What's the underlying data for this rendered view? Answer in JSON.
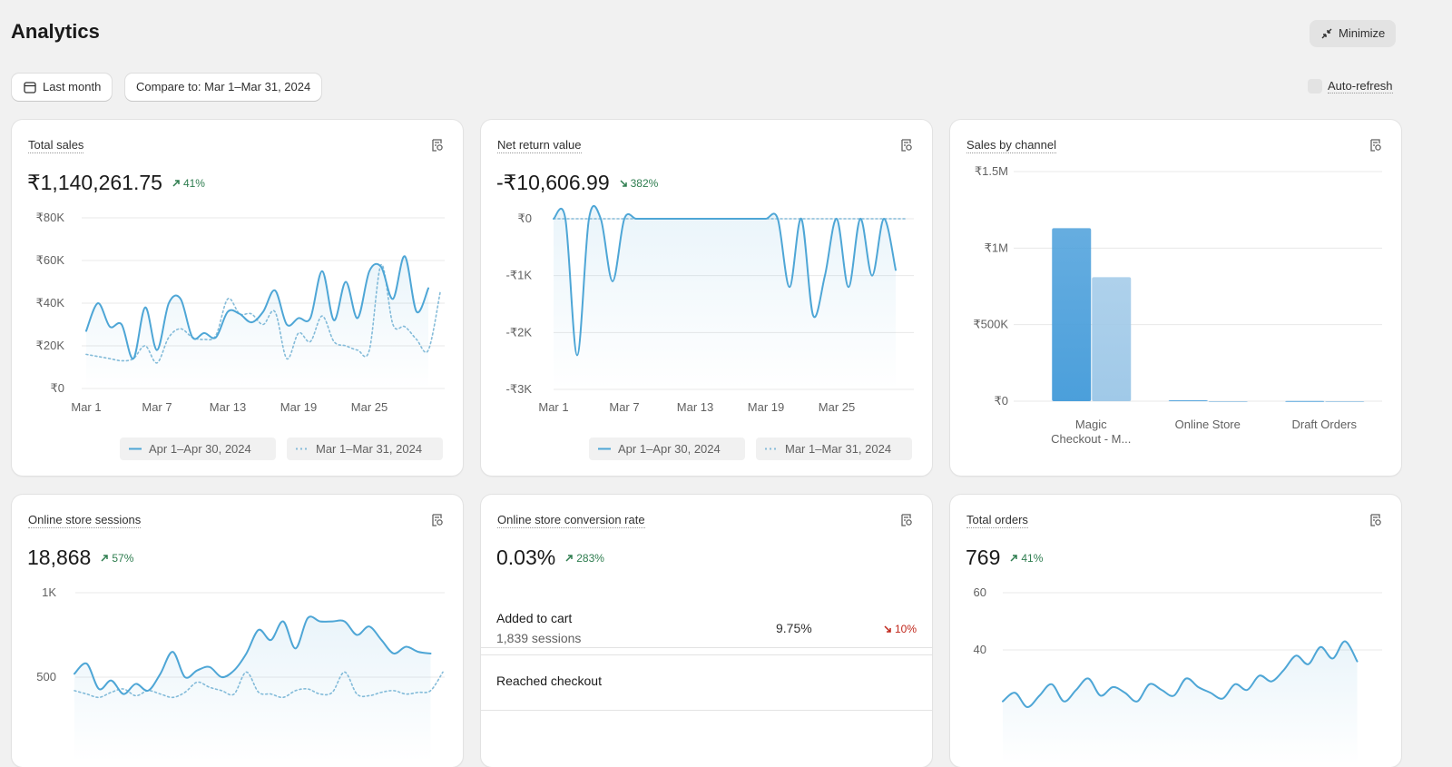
{
  "header": {
    "title": "Analytics",
    "minimize": "Minimize",
    "date_range": "Last month",
    "compare": "Compare to: Mar 1–Mar 31, 2024",
    "auto_refresh": "Auto-refresh"
  },
  "cards": [
    {
      "title": "Total sales",
      "value": "₹1,140,261.75",
      "change": "41%",
      "trend": "up",
      "chart": {
        "type": "line",
        "categories": [
          "Mar 1",
          null,
          null,
          null,
          null,
          null,
          "Mar 7",
          null,
          null,
          null,
          null,
          null,
          "Mar 13",
          null,
          null,
          null,
          null,
          null,
          "Mar 19",
          null,
          null,
          null,
          null,
          null,
          "Mar 25",
          null,
          null,
          null,
          null,
          null,
          null
        ],
        "ylim": [
          0,
          80000
        ],
        "yticks": [
          {
            "value": 0,
            "label": "₹0"
          },
          {
            "value": 20000,
            "label": "₹20K"
          },
          {
            "value": 40000,
            "label": "₹40K"
          },
          {
            "value": 60000,
            "label": "₹60K"
          },
          {
            "value": 80000,
            "label": "₹80K"
          }
        ],
        "series": [
          {
            "name": "Apr 1–Apr 30, 2024",
            "color": "#4ea6d6",
            "style": "solid",
            "values": [
              27000,
              40000,
              29000,
              30000,
              14000,
              38000,
              18000,
              40000,
              42000,
              24000,
              26000,
              24000,
              36000,
              35000,
              31000,
              36000,
              46000,
              30000,
              33000,
              33000,
              55000,
              32000,
              50000,
              33000,
              55000,
              57000,
              42000,
              62000,
              36000,
              47000,
              null
            ]
          },
          {
            "name": "Mar 1–Mar 31, 2024",
            "color": "#86bcd9",
            "style": "dotted",
            "values": [
              16000,
              15000,
              14000,
              13000,
              14000,
              20000,
              12000,
              24000,
              28000,
              24000,
              23000,
              25000,
              42000,
              35000,
              35000,
              30000,
              36000,
              14000,
              26000,
              22000,
              34000,
              22000,
              20000,
              18000,
              18000,
              58000,
              30000,
              29000,
              23000,
              18000,
              45000
            ]
          }
        ]
      }
    },
    {
      "title": "Net return value",
      "value": "-₹10,606.99",
      "change": "382%",
      "trend": "down-good",
      "chart": {
        "type": "line",
        "categories": [
          "Mar 1",
          null,
          null,
          null,
          null,
          null,
          "Mar 7",
          null,
          null,
          null,
          null,
          null,
          "Mar 13",
          null,
          null,
          null,
          null,
          null,
          "Mar 19",
          null,
          null,
          null,
          null,
          null,
          "Mar 25",
          null,
          null,
          null,
          null,
          null,
          null
        ],
        "ylim": [
          -3000,
          0
        ],
        "yticks": [
          {
            "value": 0,
            "label": "₹0"
          },
          {
            "value": -1000,
            "label": "-₹1K"
          },
          {
            "value": -2000,
            "label": "-₹2K"
          },
          {
            "value": -3000,
            "label": "-₹3K"
          }
        ],
        "series": [
          {
            "name": "Apr 1–Apr 30, 2024",
            "color": "#4ea6d6",
            "style": "solid",
            "values": [
              0,
              0,
              -2400,
              0,
              0,
              -1100,
              0,
              0,
              0,
              0,
              0,
              0,
              0,
              0,
              0,
              0,
              0,
              0,
              0,
              0,
              -1200,
              0,
              -1700,
              -1000,
              0,
              -1200,
              0,
              -1000,
              0,
              -900,
              null
            ]
          },
          {
            "name": "Mar 1–Mar 31, 2024",
            "color": "#86bcd9",
            "style": "dotted",
            "values": [
              0,
              0,
              0,
              0,
              0,
              0,
              0,
              0,
              0,
              0,
              0,
              0,
              0,
              0,
              0,
              0,
              0,
              0,
              0,
              0,
              0,
              0,
              0,
              0,
              0,
              0,
              0,
              0,
              0,
              0,
              0
            ]
          }
        ]
      }
    },
    {
      "title": "Sales by channel",
      "chart": {
        "type": "bar",
        "categories": [
          "Magic Checkout - M...",
          "Online Store",
          "Draft Orders"
        ],
        "ylim": [
          0,
          1500000
        ],
        "yticks": [
          {
            "value": 0,
            "label": "₹0"
          },
          {
            "value": 500000,
            "label": "₹500K"
          },
          {
            "value": 1000000,
            "label": "₹1M"
          },
          {
            "value": 1500000,
            "label": "₹1.5M"
          }
        ],
        "series": [
          {
            "name": "Apr 1–Apr 30, 2024",
            "color": "#4b9fdb",
            "values": [
              1130000,
              6000,
              1500
            ]
          },
          {
            "name": "Mar 1–Mar 31, 2024",
            "color": "#a0c9e8",
            "values": [
              810000,
              0,
              0
            ]
          }
        ]
      }
    },
    {
      "title": "Online store sessions",
      "value": "18,868",
      "change": "57%",
      "trend": "up",
      "chart": {
        "type": "line",
        "categories": [
          "Mar 1",
          null,
          null,
          null,
          null,
          null,
          "Mar 7",
          null,
          null,
          null,
          null,
          null,
          "Mar 13",
          null,
          null,
          null,
          null,
          null,
          "Mar 19",
          null,
          null,
          null,
          null,
          null,
          "Mar 25",
          null,
          null,
          null,
          null,
          null,
          null
        ],
        "ylim": [
          0,
          1000
        ],
        "yticks": [
          500,
          {
            "value": 1000,
            "label": "1K"
          }
        ],
        "series": [
          {
            "name": "Apr 1–Apr 30, 2024",
            "color": "#4ea6d6",
            "style": "solid",
            "values": [
              520,
              580,
              430,
              480,
              400,
              460,
              420,
              520,
              650,
              500,
              540,
              560,
              500,
              540,
              640,
              780,
              720,
              830,
              670,
              850,
              830,
              830,
              830,
              750,
              800,
              720,
              640,
              680,
              650,
              640,
              null
            ]
          },
          {
            "name": "Mar 1–Mar 31, 2024",
            "color": "#86bcd9",
            "style": "dotted",
            "values": [
              420,
              400,
              380,
              410,
              430,
              390,
              420,
              400,
              380,
              410,
              470,
              440,
              420,
              400,
              530,
              410,
              400,
              380,
              420,
              430,
              400,
              410,
              530,
              400,
              390,
              410,
              420,
              400,
              410,
              420,
              530
            ]
          }
        ]
      }
    },
    {
      "title": "Online store conversion rate",
      "value": "0.03%",
      "change": "283%",
      "trend": "up",
      "funnel": [
        {
          "label": "Added to cart",
          "sessions": "1,839 sessions",
          "rate": "9.75%",
          "change": "10%",
          "trend": "down"
        },
        {
          "label": "Reached checkout"
        }
      ]
    },
    {
      "title": "Total orders",
      "value": "769",
      "change": "41%",
      "trend": "up",
      "chart": {
        "type": "line",
        "categories": [
          "Mar 1",
          null,
          null,
          null,
          null,
          null,
          "Mar 7",
          null,
          null,
          null,
          null,
          null,
          "Mar 13",
          null,
          null,
          null,
          null,
          null,
          "Mar 19",
          null,
          null,
          null,
          null,
          null,
          "Mar 25",
          null,
          null,
          null,
          null,
          null,
          null
        ],
        "ylim": [
          0,
          60
        ],
        "yticks": [
          40,
          60
        ],
        "series": [
          {
            "name": "Apr 1–Apr 30, 2024",
            "color": "#4ea6d6",
            "style": "solid",
            "values": [
              22,
              25,
              20,
              24,
              28,
              22,
              26,
              30,
              24,
              27,
              25,
              22,
              28,
              26,
              24,
              30,
              27,
              25,
              23,
              28,
              26,
              31,
              29,
              33,
              38,
              35,
              41,
              37,
              43,
              36,
              null
            ]
          }
        ]
      }
    }
  ]
}
